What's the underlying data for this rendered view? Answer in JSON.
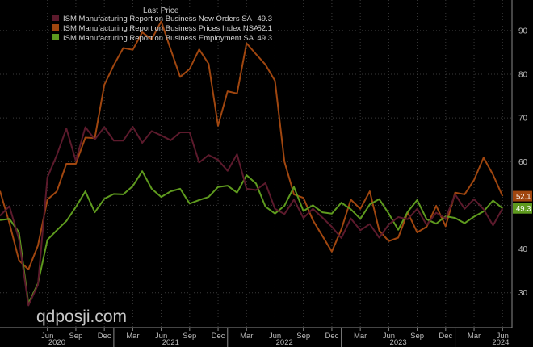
{
  "chart_data": {
    "type": "line",
    "title": "",
    "xlabel": "",
    "ylabel": "",
    "ylim": [
      22,
      97
    ],
    "grid": true,
    "legend_placement": "top-left",
    "legend_header": "Last Price",
    "y_ticks": [
      30,
      40,
      50,
      60,
      70,
      80,
      90
    ],
    "x_tick_labels": [
      "Jun",
      "Sep",
      "Dec",
      "Mar",
      "Jun",
      "Sep",
      "Dec",
      "Mar",
      "Jun",
      "Sep",
      "Dec",
      "Mar",
      "Jun",
      "Sep",
      "Dec",
      "Mar",
      "Jun"
    ],
    "x_tick_months": [
      2020.4167,
      2020.6667,
      2020.9167,
      2021.1667,
      2021.4167,
      2021.6667,
      2021.9167,
      2022.1667,
      2022.4167,
      2022.6667,
      2022.9167,
      2023.1667,
      2023.4167,
      2023.6667,
      2023.9167,
      2024.1667,
      2024.4167
    ],
    "year_labels": [
      "2020",
      "2021",
      "2022",
      "2023",
      "2024"
    ],
    "year_positions": [
      2020.5,
      2021.5,
      2022.5,
      2023.5,
      2024.4
    ],
    "x": [
      2020.0,
      2020.0833,
      2020.1667,
      2020.25,
      2020.3333,
      2020.4167,
      2020.5,
      2020.5833,
      2020.6667,
      2020.75,
      2020.8333,
      2020.9167,
      2021.0,
      2021.0833,
      2021.1667,
      2021.25,
      2021.3333,
      2021.4167,
      2021.5,
      2021.5833,
      2021.6667,
      2021.75,
      2021.8333,
      2021.9167,
      2022.0,
      2022.0833,
      2022.1667,
      2022.25,
      2022.3333,
      2022.4167,
      2022.5,
      2022.5833,
      2022.6667,
      2022.75,
      2022.8333,
      2022.9167,
      2023.0,
      2023.0833,
      2023.1667,
      2023.25,
      2023.3333,
      2023.4167,
      2023.5,
      2023.5833,
      2023.6667,
      2023.75,
      2023.8333,
      2023.9167,
      2024.0,
      2024.0833,
      2024.1667,
      2024.25,
      2024.3333,
      2024.4167
    ],
    "series": [
      {
        "name": "ISM Manufacturing Report on Business New Orders SA",
        "last": "49.3",
        "color": "#5c1a2c",
        "values": [
          47.6,
          49.8,
          42.2,
          27.1,
          31.8,
          56.4,
          61.5,
          67.6,
          60.2,
          67.9,
          65.1,
          67.9,
          64.8,
          64.8,
          68.0,
          64.3,
          67.0,
          66.0,
          64.9,
          66.7,
          66.7,
          59.8,
          61.5,
          60.4,
          57.9,
          61.7,
          53.8,
          53.5,
          55.1,
          49.2,
          48.0,
          51.3,
          47.1,
          49.2,
          47.2,
          45.1,
          42.5,
          47.0,
          44.3,
          45.7,
          42.6,
          45.6,
          47.3,
          46.8,
          49.2,
          45.5,
          48.3,
          47.0,
          52.5,
          49.2,
          51.4,
          49.1,
          45.4,
          49.3
        ]
      },
      {
        "name": "ISM Manufacturing Report on Business Prices Index NSA",
        "last": "52.1",
        "color": "#a0460f",
        "values": [
          53.3,
          45.9,
          37.4,
          35.3,
          40.8,
          51.3,
          53.2,
          59.5,
          59.5,
          65.5,
          65.4,
          77.6,
          82.1,
          86.0,
          85.6,
          89.6,
          88.0,
          92.1,
          85.7,
          79.4,
          81.2,
          85.7,
          82.4,
          68.2,
          76.1,
          75.6,
          87.1,
          84.6,
          82.2,
          78.5,
          60.0,
          52.5,
          51.7,
          46.6,
          43.0,
          39.4,
          44.5,
          51.3,
          49.2,
          53.2,
          44.2,
          41.8,
          42.6,
          48.4,
          43.8,
          45.1,
          49.9,
          45.2,
          52.9,
          52.5,
          55.8,
          60.9,
          57.0,
          52.1
        ]
      },
      {
        "name": "ISM Manufacturing Report on Business Employment SA",
        "last": "49.3",
        "color": "#5e9a1e",
        "values": [
          46.6,
          46.9,
          43.8,
          27.5,
          32.1,
          42.1,
          44.3,
          46.4,
          49.6,
          53.2,
          48.4,
          51.5,
          52.6,
          52.5,
          54.4,
          57.8,
          53.8,
          51.9,
          53.2,
          53.8,
          50.4,
          51.2,
          51.9,
          54.2,
          54.5,
          52.9,
          56.9,
          55.0,
          49.7,
          48.1,
          49.9,
          54.2,
          48.7,
          50.0,
          48.4,
          48.1,
          50.6,
          49.1,
          46.9,
          50.2,
          51.4,
          48.1,
          44.4,
          48.5,
          51.2,
          46.8,
          45.8,
          47.5,
          47.1,
          45.9,
          47.4,
          48.6,
          51.1,
          49.3
        ]
      }
    ],
    "watermark": "qdposji.com"
  }
}
